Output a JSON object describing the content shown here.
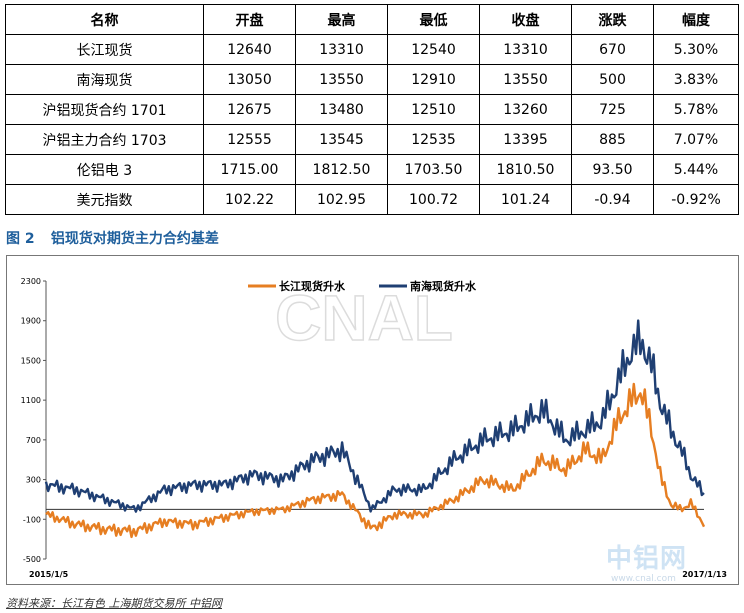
{
  "table": {
    "headers": [
      "名称",
      "开盘",
      "最高",
      "最低",
      "收盘",
      "涨跌",
      "幅度"
    ],
    "rows": [
      [
        "长江现货",
        "12640",
        "13310",
        "12540",
        "13310",
        "670",
        "5.30%"
      ],
      [
        "南海现货",
        "13050",
        "13550",
        "12910",
        "13550",
        "500",
        "3.83%"
      ],
      [
        "沪铝现货合约 1701",
        "12675",
        "13480",
        "12510",
        "13260",
        "725",
        "5.78%"
      ],
      [
        "沪铝主力合约 1703",
        "12555",
        "13545",
        "12535",
        "13395",
        "885",
        "7.07%"
      ],
      [
        "伦铝电 3",
        "1715.00",
        "1812.50",
        "1703.50",
        "1810.50",
        "93.50",
        "5.44%"
      ],
      [
        "美元指数",
        "102.22",
        "102.95",
        "100.72",
        "101.24",
        "-0.94",
        "-0.92%"
      ]
    ]
  },
  "figure": {
    "number": "图 2",
    "title": "铝现货对期货主力合约基差"
  },
  "source": "资料来源：长江有色   上海期货交易所   中铝网",
  "watermark": {
    "big": "CNAL",
    "cn": "中铝网",
    "url": "www.cnal.com"
  },
  "chart_data": {
    "type": "line",
    "x_start": "2015/1/5",
    "x_end": "2017/1/13",
    "ylim": [
      -500,
      2300
    ],
    "yticks": [
      2300,
      1900,
      1500,
      1100,
      700,
      300,
      -100,
      -500
    ],
    "xtick_labels": [
      "2015/1/5",
      "2017/1/13"
    ],
    "legend_position": "top-center",
    "colors": {
      "changjiang": "#e67e22",
      "nanhai": "#1f3f73"
    },
    "x": [
      0,
      0.045,
      0.09,
      0.135,
      0.18,
      0.225,
      0.27,
      0.315,
      0.36,
      0.405,
      0.45,
      0.495,
      0.53,
      0.575,
      0.62,
      0.665,
      0.71,
      0.755,
      0.79,
      0.82,
      0.845,
      0.87,
      0.89,
      0.905,
      0.92,
      0.935,
      0.95,
      0.965,
      0.98,
      1.0
    ],
    "series": [
      {
        "name": "长江现货升水",
        "values": [
          -50,
          -150,
          -200,
          -220,
          -120,
          -150,
          -80,
          -20,
          0,
          100,
          150,
          -200,
          -50,
          -50,
          100,
          300,
          200,
          500,
          400,
          600,
          500,
          900,
          1100,
          1200,
          800,
          300,
          50,
          0,
          60,
          -150
        ]
      },
      {
        "name": "南海现货升水",
        "values": [
          250,
          200,
          100,
          0,
          200,
          250,
          250,
          350,
          300,
          500,
          600,
          0,
          200,
          200,
          500,
          700,
          800,
          1000,
          700,
          800,
          900,
          1300,
          1600,
          1700,
          1450,
          1050,
          800,
          600,
          350,
          150
        ]
      }
    ]
  }
}
